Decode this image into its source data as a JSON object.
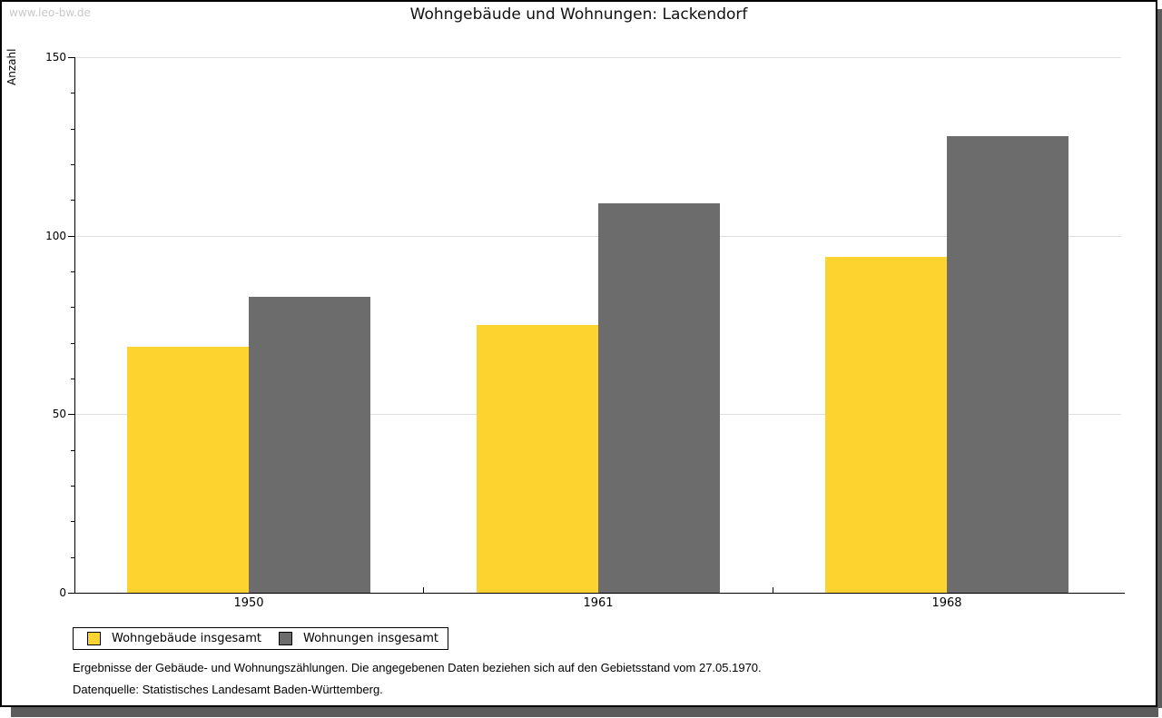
{
  "watermark": "www.leo-bw.de",
  "header": {
    "title": "Wohngebäude und Wohnungen: Lackendorf"
  },
  "chart_data": {
    "type": "bar",
    "title": "Wohngebäude und Wohnungen: Lackendorf",
    "xlabel": "",
    "ylabel": "Anzahl",
    "categories": [
      "1950",
      "1961",
      "1968"
    ],
    "series": [
      {
        "name": "Wohngebäude insgesamt",
        "color": "#FCD32F",
        "values": [
          69,
          75,
          94
        ]
      },
      {
        "name": "Wohnungen insgesamt",
        "color": "#6C6C6C",
        "values": [
          83,
          109,
          128
        ]
      }
    ],
    "ylim": [
      0,
      150
    ],
    "yticks": [
      0,
      50,
      100,
      150
    ],
    "minor_tick_step": 10,
    "grid": "horizontal",
    "gridline_color": "#dddddd",
    "legend_position": "bottom-left"
  },
  "footnotes": {
    "line1": "Ergebnisse der Gebäude- und Wohnungszählungen. Die angegebenen Daten beziehen sich auf den Gebietsstand vom 27.05.1970.",
    "line2": "Datenquelle: Statistisches Landesamt Baden-Württemberg."
  }
}
